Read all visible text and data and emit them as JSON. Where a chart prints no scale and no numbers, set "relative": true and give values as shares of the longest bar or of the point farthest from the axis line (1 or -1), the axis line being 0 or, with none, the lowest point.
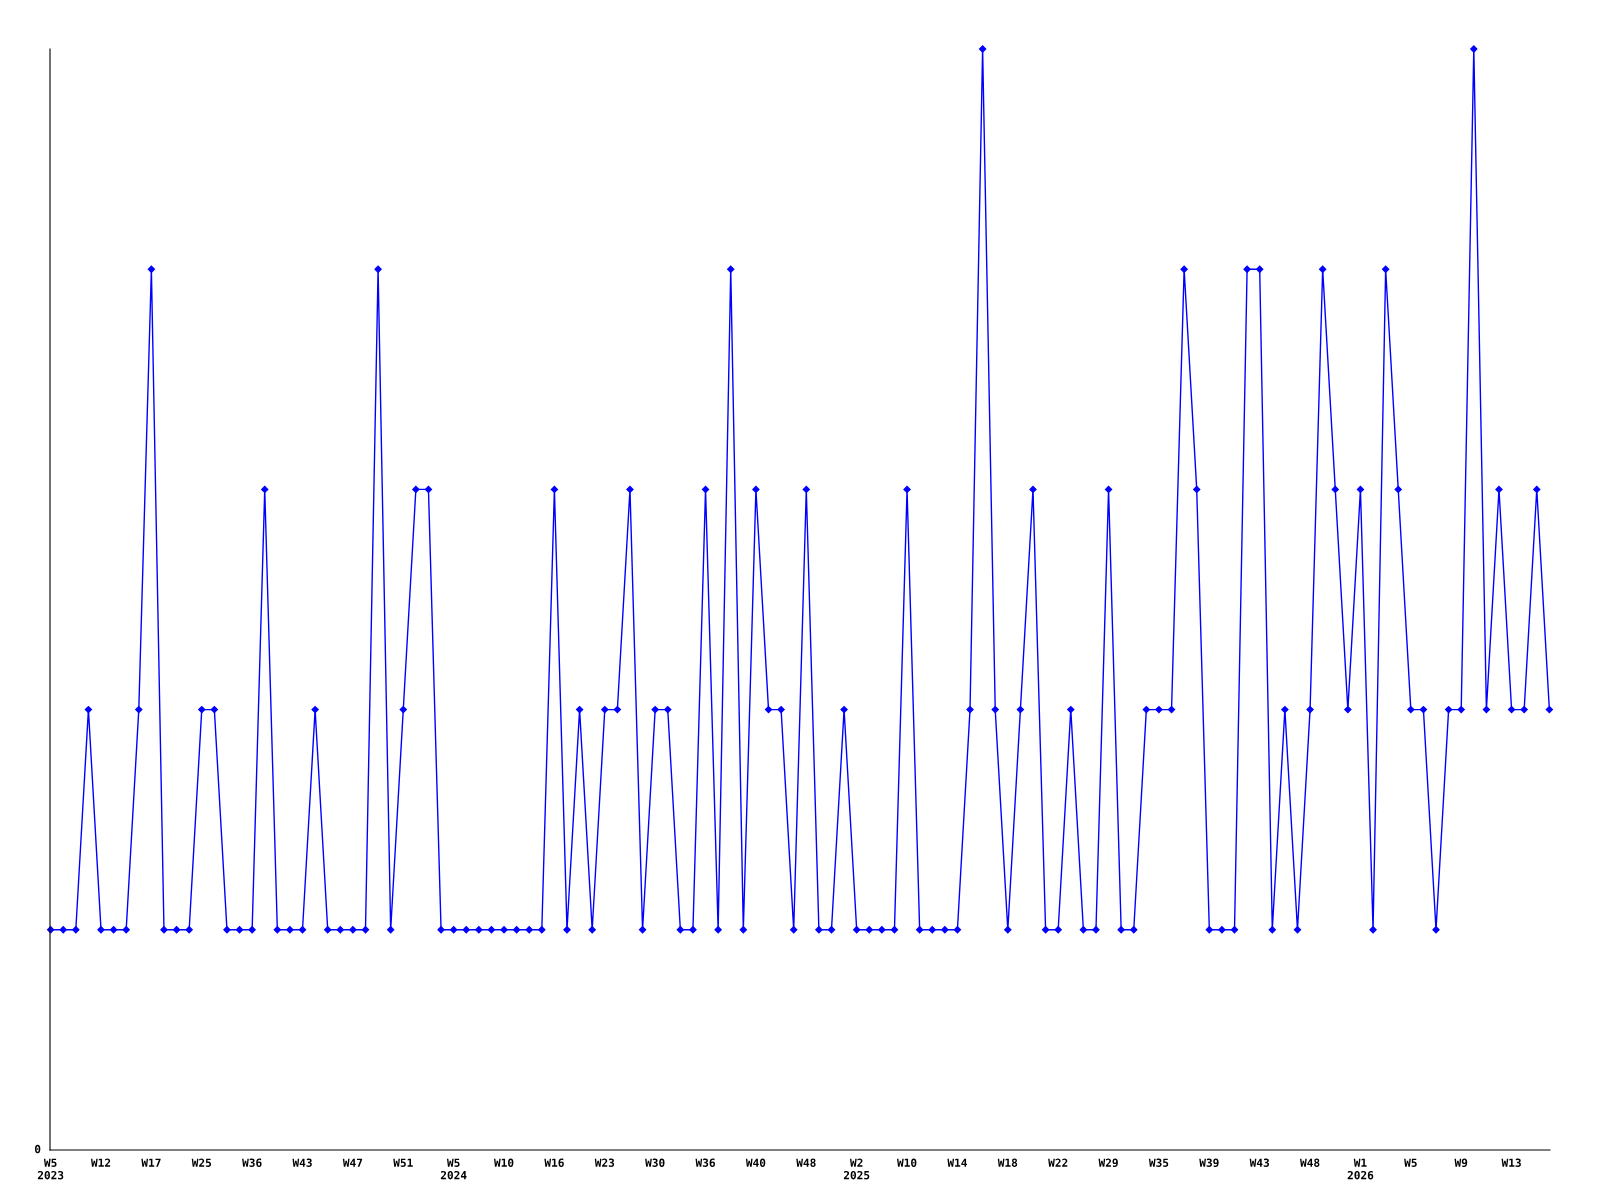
{
  "chart_data": {
    "type": "line",
    "relative": true,
    "marker": "diamond",
    "line_style": "solid",
    "grid": false,
    "legend": false,
    "annotations": [
      "0"
    ],
    "categories": [
      "W5\n2023",
      null,
      null,
      null,
      "W12",
      null,
      null,
      null,
      "W17",
      null,
      null,
      null,
      "W25",
      null,
      null,
      null,
      "W36",
      null,
      null,
      null,
      "W43",
      null,
      null,
      null,
      "W47",
      null,
      null,
      null,
      "W51",
      null,
      null,
      null,
      "W5\n2024",
      null,
      null,
      null,
      "W10",
      null,
      null,
      null,
      "W16",
      null,
      null,
      null,
      "W23",
      null,
      null,
      null,
      "W30",
      null,
      null,
      null,
      "W36",
      null,
      null,
      null,
      "W40",
      null,
      null,
      null,
      "W48",
      null,
      null,
      null,
      "W2\n2025",
      null,
      null,
      null,
      "W10",
      null,
      null,
      null,
      "W14",
      null,
      null,
      null,
      "W18",
      null,
      null,
      null,
      "W22",
      null,
      null,
      null,
      "W29",
      null,
      null,
      null,
      "W35",
      null,
      null,
      null,
      "W39",
      null,
      null,
      null,
      "W43",
      null,
      null,
      null,
      "W48",
      null,
      null,
      null,
      "W1\n2026",
      null,
      null,
      null,
      "W5",
      null,
      null,
      null,
      "W9",
      null,
      null,
      null,
      "W13",
      null,
      null,
      null
    ],
    "series": [
      {
        "color": "#0000ff",
        "values": [
          0.2,
          0.2,
          0.2,
          0.4,
          0.2,
          0.2,
          0.2,
          0.4,
          0.8,
          0.2,
          0.2,
          0.2,
          0.4,
          0.4,
          0.2,
          0.2,
          0.2,
          0.6,
          0.2,
          0.2,
          0.2,
          0.4,
          0.2,
          0.2,
          0.2,
          0.2,
          0.8,
          0.2,
          0.4,
          0.6,
          0.6,
          0.2,
          0.2,
          0.2,
          0.2,
          0.2,
          0.2,
          0.2,
          0.2,
          0.2,
          0.6,
          0.2,
          0.4,
          0.2,
          0.4,
          0.4,
          0.6,
          0.2,
          0.4,
          0.4,
          0.2,
          0.2,
          0.6,
          0.2,
          0.8,
          0.2,
          0.6,
          0.4,
          0.4,
          0.2,
          0.6,
          0.2,
          0.2,
          0.4,
          0.2,
          0.2,
          0.2,
          0.2,
          0.6,
          0.2,
          0.2,
          0.2,
          0.2,
          0.4,
          1,
          0.4,
          0.2,
          0.4,
          0.6,
          0.2,
          0.2,
          0.4,
          0.2,
          0.2,
          0.6,
          0.2,
          0.2,
          0.4,
          0.4,
          0.4,
          0.8,
          0.6,
          0.2,
          0.2,
          0.2,
          0.8,
          0.8,
          0.2,
          0.4,
          0.2,
          0.4,
          0.8,
          0.6,
          0.4,
          0.6,
          0.2,
          0.8,
          0.6,
          0.4,
          0.4,
          0.2,
          0.4,
          0.4,
          1,
          0.4,
          0.6,
          0.4,
          0.4,
          0.6,
          0.4
        ]
      }
    ]
  }
}
